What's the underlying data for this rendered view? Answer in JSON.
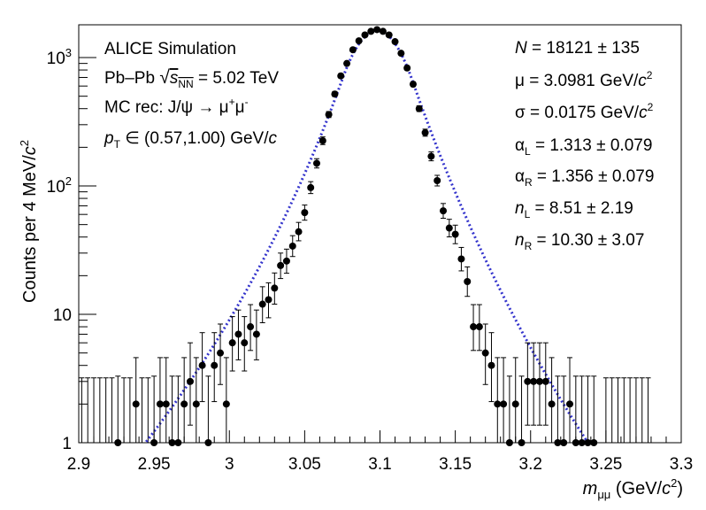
{
  "chart_data": {
    "type": "scatter",
    "xlabel": "m_μμ (GeV/c²)",
    "ylabel": "Counts per 4 MeV/c²",
    "xlim": [
      2.9,
      3.3
    ],
    "ylim": [
      1,
      1800
    ],
    "log_y": true,
    "grid": false,
    "x_ticks": [
      "2.9",
      "2.95",
      "3",
      "3.05",
      "3.1",
      "3.15",
      "3.2",
      "3.25",
      "3.3"
    ],
    "y_ticks": [
      "1",
      "10",
      "10²",
      "10³"
    ],
    "annotations_left": [
      "ALICE Simulation",
      "Pb–Pb √sNN = 5.02 TeV",
      "MC rec: J/ψ → μ⁺μ⁻",
      "pT ∈ (0.57,1.00) GeV/c"
    ],
    "annotations_right": [
      "N = 18121 ± 135",
      "μ = 3.0981 GeV/c²",
      "σ = 0.0175 GeV/c²",
      "αL = 1.313 ± 0.079",
      "αR = 1.356 ± 0.079",
      "nL = 8.51 ± 2.19",
      "nR = 10.30 ± 3.07"
    ],
    "marker_color": "#000000",
    "fit_color": "#3333cc",
    "series": [
      {
        "type": "points_with_errors",
        "x": [
          2.926,
          2.938,
          2.95,
          2.954,
          2.958,
          2.962,
          2.966,
          2.97,
          2.974,
          2.978,
          2.982,
          2.986,
          2.99,
          2.994,
          2.998,
          3.002,
          3.006,
          3.01,
          3.014,
          3.018,
          3.022,
          3.026,
          3.03,
          3.034,
          3.038,
          3.042,
          3.046,
          3.05,
          3.054,
          3.058,
          3.062,
          3.066,
          3.07,
          3.074,
          3.078,
          3.082,
          3.086,
          3.09,
          3.094,
          3.098,
          3.102,
          3.106,
          3.11,
          3.114,
          3.118,
          3.122,
          3.126,
          3.13,
          3.134,
          3.138,
          3.142,
          3.146,
          3.15,
          3.154,
          3.158,
          3.162,
          3.166,
          3.17,
          3.174,
          3.178,
          3.182,
          3.186,
          3.19,
          3.194,
          3.198,
          3.202,
          3.206,
          3.21,
          3.214,
          3.218,
          3.222,
          3.226,
          3.23,
          3.234,
          3.238,
          3.242
        ],
        "y": [
          1,
          2,
          1,
          2,
          2,
          1,
          1,
          2,
          3,
          2,
          4,
          1,
          4,
          5,
          2,
          6,
          7,
          6,
          8,
          7,
          12,
          13,
          16,
          24,
          26,
          34,
          44,
          62,
          97,
          150,
          225,
          360,
          520,
          720,
          900,
          1150,
          1350,
          1500,
          1600,
          1650,
          1600,
          1500,
          1330,
          1080,
          830,
          620,
          400,
          260,
          170,
          110,
          64,
          47,
          42,
          27,
          18,
          8,
          8,
          5,
          4,
          2,
          2,
          1,
          2,
          1,
          3,
          3,
          3,
          3,
          2,
          1,
          1,
          2,
          1,
          1,
          1,
          1
        ],
        "y_err_high": [
          2.3,
          2.6,
          2.3,
          2.6,
          2.6,
          2.3,
          2.3,
          2.6,
          3.0,
          2.6,
          3.2,
          2.3,
          3.2,
          3.4,
          2.6,
          3.6,
          3.8,
          3.6,
          3.9,
          3.8,
          4.4,
          4.6,
          5.0,
          6.0,
          6.2,
          7.0,
          8.0,
          9.0,
          11,
          13,
          16,
          20,
          24,
          28,
          31,
          35,
          38,
          40,
          41,
          42,
          41,
          40,
          37,
          34,
          30,
          26,
          21,
          17,
          14,
          11,
          9,
          8,
          7.5,
          6.2,
          5.4,
          3.9,
          3.9,
          3.4,
          3.2,
          2.6,
          2.6,
          2.3,
          2.6,
          2.3,
          3.0,
          3.0,
          3.0,
          3.0,
          2.6,
          2.3,
          2.3,
          2.6,
          2.3,
          2.3,
          2.3,
          2.3
        ],
        "y_err_low": [
          0.83,
          1.29,
          0.83,
          1.29,
          1.29,
          0.83,
          0.83,
          1.29,
          1.63,
          1.29,
          1.91,
          0.83,
          1.91,
          2.16,
          1.29,
          2.38,
          2.58,
          2.38,
          2.77,
          2.58,
          3.4,
          3.6,
          4.0,
          5.0,
          5.1,
          5.8,
          6.6,
          7.9,
          9.8,
          12,
          15,
          19,
          23,
          27,
          30,
          34,
          37,
          39,
          40,
          41,
          40,
          39,
          36,
          33,
          29,
          25,
          20,
          16,
          13,
          10,
          8,
          6.9,
          6.5,
          5.2,
          4.2,
          2.77,
          2.77,
          2.16,
          1.91,
          1.29,
          1.29,
          0.83,
          1.29,
          0.83,
          1.63,
          1.63,
          1.63,
          1.63,
          1.29,
          0.83,
          0.83,
          1.29,
          0.83,
          0.83,
          0.83,
          0.83
        ]
      },
      {
        "type": "fit",
        "style": "dotted",
        "amplitude": 1620,
        "mean": 3.0981,
        "sigma": 0.0175,
        "alpha_L": 1.313,
        "alpha_R": 1.356,
        "n_L": 8.51,
        "n_R": 10.3
      }
    ],
    "upper_limit_bars_x": [
      2.902,
      2.906,
      2.91,
      2.914,
      2.918,
      2.922,
      2.93,
      2.934,
      2.942,
      2.946,
      3.25,
      3.254,
      3.258,
      3.262,
      3.266,
      3.27,
      3.274,
      3.278
    ]
  }
}
